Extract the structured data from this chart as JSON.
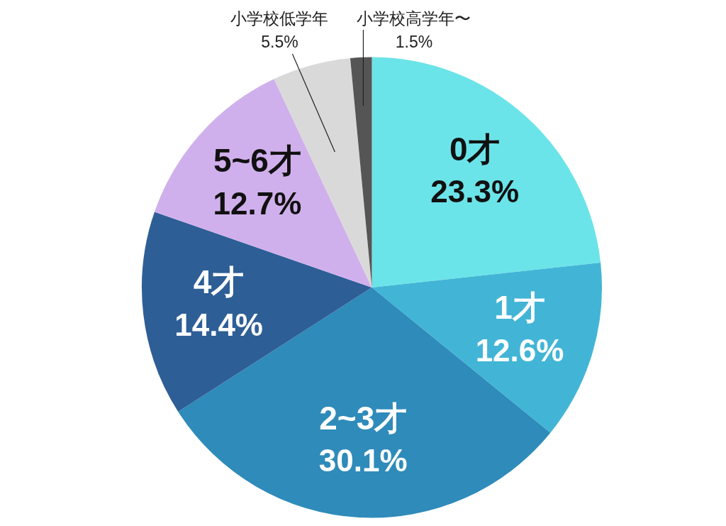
{
  "chart_data": {
    "type": "pie",
    "categories": [
      "0才",
      "1才",
      "2~3才",
      "4才",
      "5~6才",
      "小学校低学年",
      "小学校高学年〜"
    ],
    "values": [
      23.3,
      12.6,
      30.1,
      14.4,
      12.7,
      5.5,
      1.5
    ],
    "colors": [
      "#6be4e9",
      "#42b5d6",
      "#2e8bba",
      "#2e5e96",
      "#d0b0ec",
      "#d9d9d9",
      "#555555"
    ],
    "value_labels": [
      "23.3%",
      "12.6%",
      "30.1%",
      "14.4%",
      "12.7%",
      "5.5%",
      "1.5%"
    ]
  }
}
